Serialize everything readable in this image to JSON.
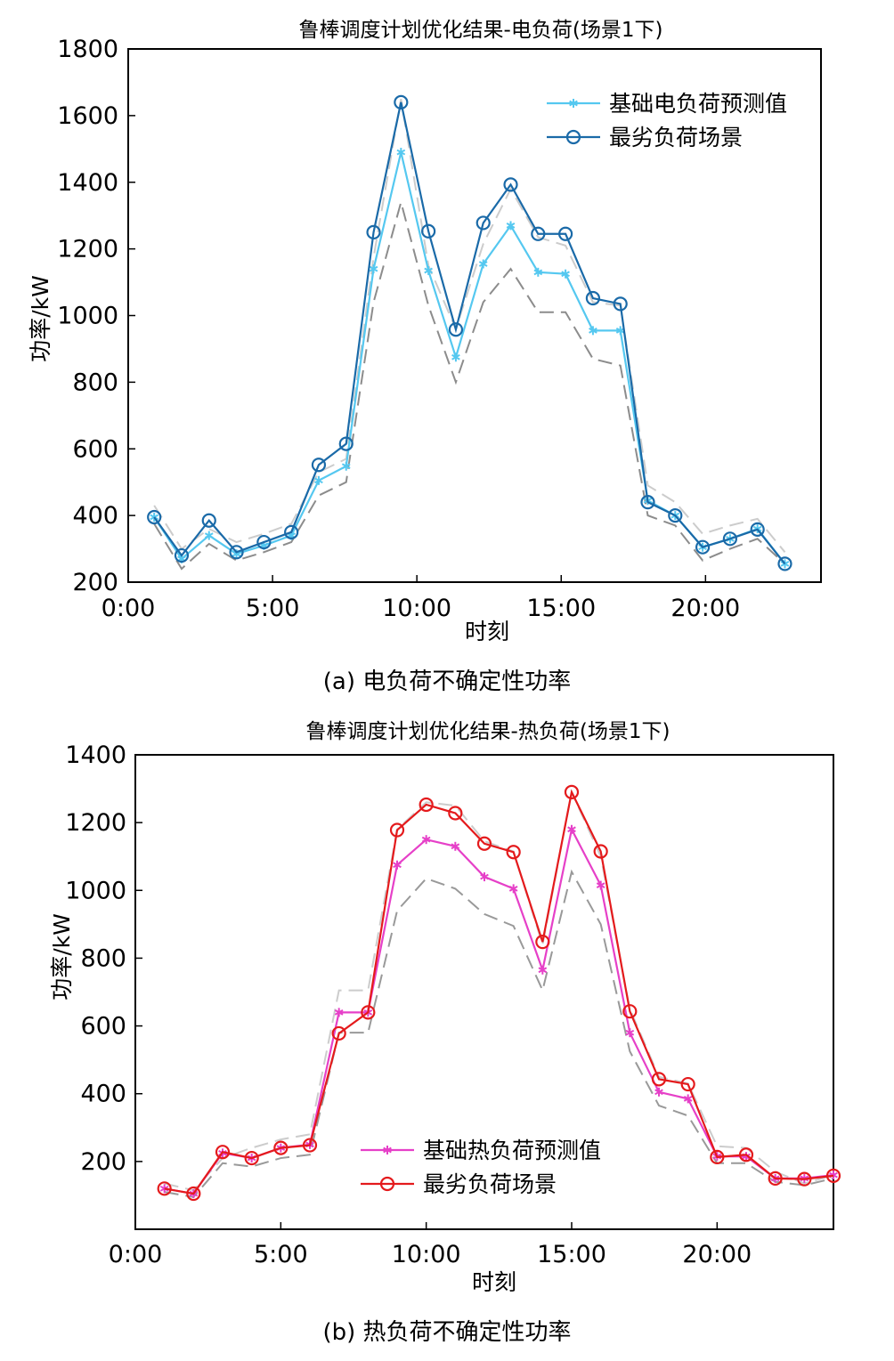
{
  "chart_data": [
    {
      "type": "line",
      "title": "鲁棒调度计划优化结果-电负荷(场景1下)",
      "caption": "(a) 电负荷不确定性功率",
      "xlabel": "时刻",
      "ylabel": "功率/kW",
      "xlim": [
        0,
        24
      ],
      "ylim": [
        200,
        1800
      ],
      "yticks": [
        200,
        400,
        600,
        800,
        1000,
        1200,
        1400,
        1600,
        1800
      ],
      "xticks": [
        {
          "v": 0,
          "label": "0:00"
        },
        {
          "v": 5,
          "label": "5:00"
        },
        {
          "v": 10,
          "label": "10:00"
        },
        {
          "v": 15,
          "label": "15:00"
        },
        {
          "v": 20,
          "label": "20:00"
        }
      ],
      "legend_position": "top-right",
      "x": [
        0.9,
        1.85,
        2.8,
        3.75,
        4.7,
        5.65,
        6.6,
        7.55,
        8.5,
        9.45,
        10.4,
        11.35,
        12.3,
        13.25,
        14.2,
        15.15,
        16.1,
        17.05,
        18.0,
        18.95,
        19.9,
        20.85,
        21.8,
        22.75
      ],
      "series": [
        {
          "name": "基础电负荷预测值",
          "color": "#55c8f0",
          "marker": "star",
          "values": [
            395,
            270,
            340,
            285,
            310,
            340,
            505,
            548,
            1140,
            1490,
            1135,
            875,
            1155,
            1270,
            1130,
            1125,
            955,
            955,
            445,
            400,
            305,
            330,
            360,
            255
          ]
        },
        {
          "name": "最劣负荷场景",
          "color": "#1a6aa8",
          "marker": "circle",
          "values": [
            395,
            280,
            385,
            290,
            320,
            350,
            552,
            615,
            1250,
            1640,
            1253,
            958,
            1278,
            1393,
            1245,
            1245,
            1052,
            1035,
            440,
            400,
            305,
            330,
            358,
            255
          ]
        },
        {
          "name": "",
          "color": "#cccccc",
          "marker": "none",
          "dash": true,
          "values": [
            430,
            300,
            360,
            320,
            345,
            375,
            530,
            570,
            1175,
            1650,
            1150,
            960,
            1215,
            1380,
            1235,
            1210,
            1040,
            1030,
            490,
            440,
            345,
            370,
            390,
            290
          ]
        },
        {
          "name": "",
          "color": "#8c8c8c",
          "marker": "none",
          "dash": true,
          "values": [
            375,
            240,
            315,
            265,
            290,
            320,
            460,
            500,
            1040,
            1340,
            1030,
            800,
            1040,
            1140,
            1010,
            1010,
            870,
            850,
            400,
            370,
            265,
            300,
            330,
            255
          ]
        }
      ]
    },
    {
      "type": "line",
      "title": "鲁棒调度计划优化结果-热负荷(场景1下)",
      "caption": "(b) 热负荷不确定性功率",
      "xlabel": "时刻",
      "ylabel": "功率/kW",
      "xlim": [
        0,
        24
      ],
      "ylim": [
        0,
        1400
      ],
      "yticks": [
        200,
        400,
        600,
        800,
        1000,
        1200,
        1400
      ],
      "xticks": [
        {
          "v": 0,
          "label": "0:00"
        },
        {
          "v": 5,
          "label": "5:00"
        },
        {
          "v": 10,
          "label": "10:00"
        },
        {
          "v": 15,
          "label": "15:00"
        },
        {
          "v": 20,
          "label": "20:00"
        }
      ],
      "legend_position": "bottom-center",
      "x": [
        1,
        2,
        3,
        4,
        5,
        6,
        7,
        8,
        9,
        10,
        11,
        12,
        13,
        14,
        15,
        16,
        17,
        18,
        19,
        20,
        21,
        22,
        23,
        24
      ],
      "series": [
        {
          "name": "基础热负荷预测值",
          "color": "#e640c8",
          "marker": "star",
          "values": [
            120,
            105,
            225,
            210,
            240,
            250,
            640,
            640,
            1075,
            1150,
            1130,
            1040,
            1005,
            765,
            1180,
            1015,
            580,
            405,
            385,
            215,
            215,
            150,
            150,
            160
          ]
        },
        {
          "name": "最劣负荷场景",
          "color": "#e41a1c",
          "marker": "circle",
          "values": [
            120,
            105,
            228,
            210,
            240,
            248,
            578,
            640,
            1178,
            1253,
            1228,
            1138,
            1113,
            848,
            1290,
            1115,
            643,
            443,
            428,
            213,
            220,
            150,
            148,
            158
          ]
        },
        {
          "name": "",
          "color": "#cccccc",
          "marker": "none",
          "dash": true,
          "values": [
            135,
            115,
            210,
            240,
            265,
            280,
            705,
            705,
            1180,
            1260,
            1250,
            1145,
            1115,
            840,
            1290,
            1100,
            650,
            450,
            430,
            245,
            240,
            170,
            135,
            160
          ]
        },
        {
          "name": "",
          "color": "#999999",
          "marker": "none",
          "dash": true,
          "values": [
            110,
            95,
            195,
            185,
            210,
            220,
            580,
            580,
            940,
            1035,
            1005,
            930,
            895,
            705,
            1055,
            900,
            525,
            365,
            335,
            195,
            195,
            140,
            130,
            150
          ]
        }
      ]
    }
  ]
}
